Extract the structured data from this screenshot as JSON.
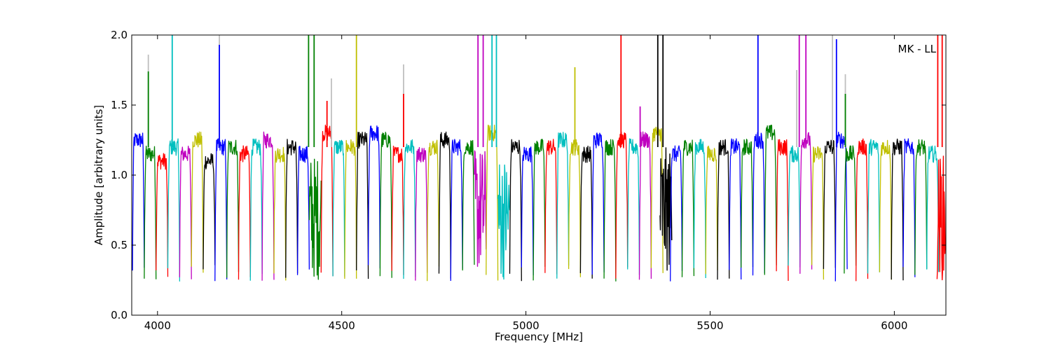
{
  "chart_data": {
    "type": "line",
    "title": "",
    "xlabel": "Frequency [MHz]",
    "ylabel": "Amplitude [arbitrary units]",
    "xlim": [
      3930,
      6140
    ],
    "ylim": [
      0.0,
      2.0
    ],
    "x_ticks": [
      4000,
      4500,
      5000,
      5500,
      6000
    ],
    "x_tick_labels": [
      "4000",
      "4500",
      "5000",
      "5500",
      "6000"
    ],
    "y_ticks": [
      0.0,
      0.5,
      1.0,
      1.5,
      2.0
    ],
    "y_tick_labels": [
      "0.0",
      "0.5",
      "1.0",
      "1.5",
      "2.0"
    ],
    "annotation": "MK - LL",
    "annotation_position": "top-right",
    "grid": false,
    "legend": "none",
    "color_cycle": [
      "#0000ff",
      "#008000",
      "#ff0000",
      "#00bfbf",
      "#bf00bf",
      "#bfbf00",
      "#000000"
    ],
    "flag_color": "#bfbfbf",
    "channel_width_mhz": 32,
    "segments": [
      {
        "x0": 3932,
        "color": "#0000ff",
        "level": 1.25
      },
      {
        "x0": 3964,
        "color": "#008000",
        "level": 1.15
      },
      {
        "x0": 3996,
        "color": "#ff0000",
        "level": 1.1
      },
      {
        "x0": 4028,
        "color": "#00bfbf",
        "level": 1.2
      },
      {
        "x0": 4060,
        "color": "#bf00bf",
        "level": 1.15
      },
      {
        "x0": 4092,
        "color": "#bfbf00",
        "level": 1.25
      },
      {
        "x0": 4124,
        "color": "#000000",
        "level": 1.1
      },
      {
        "x0": 4156,
        "color": "#0000ff",
        "level": 1.2
      },
      {
        "x0": 4188,
        "color": "#008000",
        "level": 1.2
      },
      {
        "x0": 4220,
        "color": "#ff0000",
        "level": 1.15
      },
      {
        "x0": 4252,
        "color": "#00bfbf",
        "level": 1.2
      },
      {
        "x0": 4284,
        "color": "#bf00bf",
        "level": 1.25
      },
      {
        "x0": 4316,
        "color": "#bfbf00",
        "level": 1.15
      },
      {
        "x0": 4348,
        "color": "#000000",
        "level": 1.2
      },
      {
        "x0": 4380,
        "color": "#0000ff",
        "level": 1.15
      },
      {
        "x0": 4412,
        "color": "#008000",
        "level": 0.7
      },
      {
        "x0": 4444,
        "color": "#ff0000",
        "level": 1.3
      },
      {
        "x0": 4476,
        "color": "#00bfbf",
        "level": 1.2
      },
      {
        "x0": 4508,
        "color": "#bfbf00",
        "level": 1.2
      },
      {
        "x0": 4540,
        "color": "#000000",
        "level": 1.25
      },
      {
        "x0": 4572,
        "color": "#0000ff",
        "level": 1.3
      },
      {
        "x0": 4604,
        "color": "#008000",
        "level": 1.25
      },
      {
        "x0": 4636,
        "color": "#ff0000",
        "level": 1.15
      },
      {
        "x0": 4668,
        "color": "#00bfbf",
        "level": 1.2
      },
      {
        "x0": 4700,
        "color": "#bf00bf",
        "level": 1.15
      },
      {
        "x0": 4732,
        "color": "#bfbf00",
        "level": 1.2
      },
      {
        "x0": 4764,
        "color": "#000000",
        "level": 1.25
      },
      {
        "x0": 4796,
        "color": "#0000ff",
        "level": 1.2
      },
      {
        "x0": 4828,
        "color": "#008000",
        "level": 1.2
      },
      {
        "x0": 4860,
        "color": "#bf00bf",
        "level": 0.75
      },
      {
        "x0": 4892,
        "color": "#bfbf00",
        "level": 1.3
      },
      {
        "x0": 4924,
        "color": "#00bfbf",
        "level": 0.7
      },
      {
        "x0": 4956,
        "color": "#000000",
        "level": 1.2
      },
      {
        "x0": 4988,
        "color": "#0000ff",
        "level": 1.15
      },
      {
        "x0": 5020,
        "color": "#008000",
        "level": 1.2
      },
      {
        "x0": 5052,
        "color": "#ff0000",
        "level": 1.2
      },
      {
        "x0": 5084,
        "color": "#00bfbf",
        "level": 1.25
      },
      {
        "x0": 5116,
        "color": "#bfbf00",
        "level": 1.2
      },
      {
        "x0": 5148,
        "color": "#000000",
        "level": 1.15
      },
      {
        "x0": 5180,
        "color": "#0000ff",
        "level": 1.25
      },
      {
        "x0": 5212,
        "color": "#008000",
        "level": 1.2
      },
      {
        "x0": 5244,
        "color": "#ff0000",
        "level": 1.25
      },
      {
        "x0": 5276,
        "color": "#00bfbf",
        "level": 1.2
      },
      {
        "x0": 5308,
        "color": "#bf00bf",
        "level": 1.25
      },
      {
        "x0": 5340,
        "color": "#bfbf00",
        "level": 1.3
      },
      {
        "x0": 5364,
        "color": "#000000",
        "level": 0.75
      },
      {
        "x0": 5392,
        "color": "#0000ff",
        "level": 1.15
      },
      {
        "x0": 5424,
        "color": "#008000",
        "level": 1.2
      },
      {
        "x0": 5456,
        "color": "#00bfbf",
        "level": 1.2
      },
      {
        "x0": 5488,
        "color": "#bfbf00",
        "level": 1.15
      },
      {
        "x0": 5520,
        "color": "#000000",
        "level": 1.2
      },
      {
        "x0": 5552,
        "color": "#0000ff",
        "level": 1.2
      },
      {
        "x0": 5584,
        "color": "#008000",
        "level": 1.2
      },
      {
        "x0": 5616,
        "color": "#0000ff",
        "level": 1.25
      },
      {
        "x0": 5648,
        "color": "#008000",
        "level": 1.3
      },
      {
        "x0": 5680,
        "color": "#ff0000",
        "level": 1.2
      },
      {
        "x0": 5712,
        "color": "#00bfbf",
        "level": 1.15
      },
      {
        "x0": 5744,
        "color": "#bf00bf",
        "level": 1.25
      },
      {
        "x0": 5776,
        "color": "#bfbf00",
        "level": 1.15
      },
      {
        "x0": 5808,
        "color": "#000000",
        "level": 1.2
      },
      {
        "x0": 5840,
        "color": "#0000ff",
        "level": 1.25
      },
      {
        "x0": 5864,
        "color": "#008000",
        "level": 1.15
      },
      {
        "x0": 5896,
        "color": "#ff0000",
        "level": 1.2
      },
      {
        "x0": 5928,
        "color": "#00bfbf",
        "level": 1.2
      },
      {
        "x0": 5960,
        "color": "#bfbf00",
        "level": 1.2
      },
      {
        "x0": 5992,
        "color": "#000000",
        "level": 1.2
      },
      {
        "x0": 6024,
        "color": "#0000ff",
        "level": 1.2
      },
      {
        "x0": 6056,
        "color": "#008000",
        "level": 1.2
      },
      {
        "x0": 6088,
        "color": "#00bfbf",
        "level": 1.15
      },
      {
        "x0": 6116,
        "color": "#ff0000",
        "level": 0.7
      }
    ],
    "spikes": [
      {
        "x": 3975,
        "y_top": 1.86,
        "color": "#bfbfbf"
      },
      {
        "x": 3975,
        "y_top": 1.74,
        "color": "#008000"
      },
      {
        "x": 4040,
        "y_top": 2.0,
        "color": "#00bfbf"
      },
      {
        "x": 4168,
        "y_top": 2.0,
        "color": "#bfbfbf"
      },
      {
        "x": 4168,
        "y_top": 1.93,
        "color": "#0000ff"
      },
      {
        "x": 4410,
        "y_top": 2.0,
        "color": "#008000"
      },
      {
        "x": 4425,
        "y_top": 2.0,
        "color": "#008000"
      },
      {
        "x": 4460,
        "y_top": 1.53,
        "color": "#ff0000"
      },
      {
        "x": 4472,
        "y_top": 1.69,
        "color": "#bfbfbf"
      },
      {
        "x": 4540,
        "y_top": 2.0,
        "color": "#bfbf00"
      },
      {
        "x": 4668,
        "y_top": 1.79,
        "color": "#bfbfbf"
      },
      {
        "x": 4668,
        "y_top": 1.58,
        "color": "#ff0000"
      },
      {
        "x": 4870,
        "y_top": 2.0,
        "color": "#bf00bf"
      },
      {
        "x": 4884,
        "y_top": 2.0,
        "color": "#bf00bf"
      },
      {
        "x": 4908,
        "y_top": 2.0,
        "color": "#00bfbf"
      },
      {
        "x": 4920,
        "y_top": 2.0,
        "color": "#00bfbf"
      },
      {
        "x": 5133,
        "y_top": 1.77,
        "color": "#bfbf00"
      },
      {
        "x": 5258,
        "y_top": 2.0,
        "color": "#ff0000"
      },
      {
        "x": 5310,
        "y_top": 1.49,
        "color": "#bf00bf"
      },
      {
        "x": 5358,
        "y_top": 2.0,
        "color": "#000000"
      },
      {
        "x": 5372,
        "y_top": 2.0,
        "color": "#000000"
      },
      {
        "x": 5630,
        "y_top": 2.0,
        "color": "#0000ff"
      },
      {
        "x": 5735,
        "y_top": 1.75,
        "color": "#bfbfbf"
      },
      {
        "x": 5742,
        "y_top": 2.0,
        "color": "#bf00bf"
      },
      {
        "x": 5760,
        "y_top": 2.0,
        "color": "#bf00bf"
      },
      {
        "x": 5832,
        "y_top": 2.0,
        "color": "#bfbfbf"
      },
      {
        "x": 5843,
        "y_top": 1.97,
        "color": "#0000ff"
      },
      {
        "x": 5867,
        "y_top": 1.72,
        "color": "#bfbfbf"
      },
      {
        "x": 5867,
        "y_top": 1.58,
        "color": "#008000"
      },
      {
        "x": 6118,
        "y_top": 2.0,
        "color": "#ff0000"
      },
      {
        "x": 6130,
        "y_top": 2.0,
        "color": "#ff0000"
      }
    ]
  }
}
